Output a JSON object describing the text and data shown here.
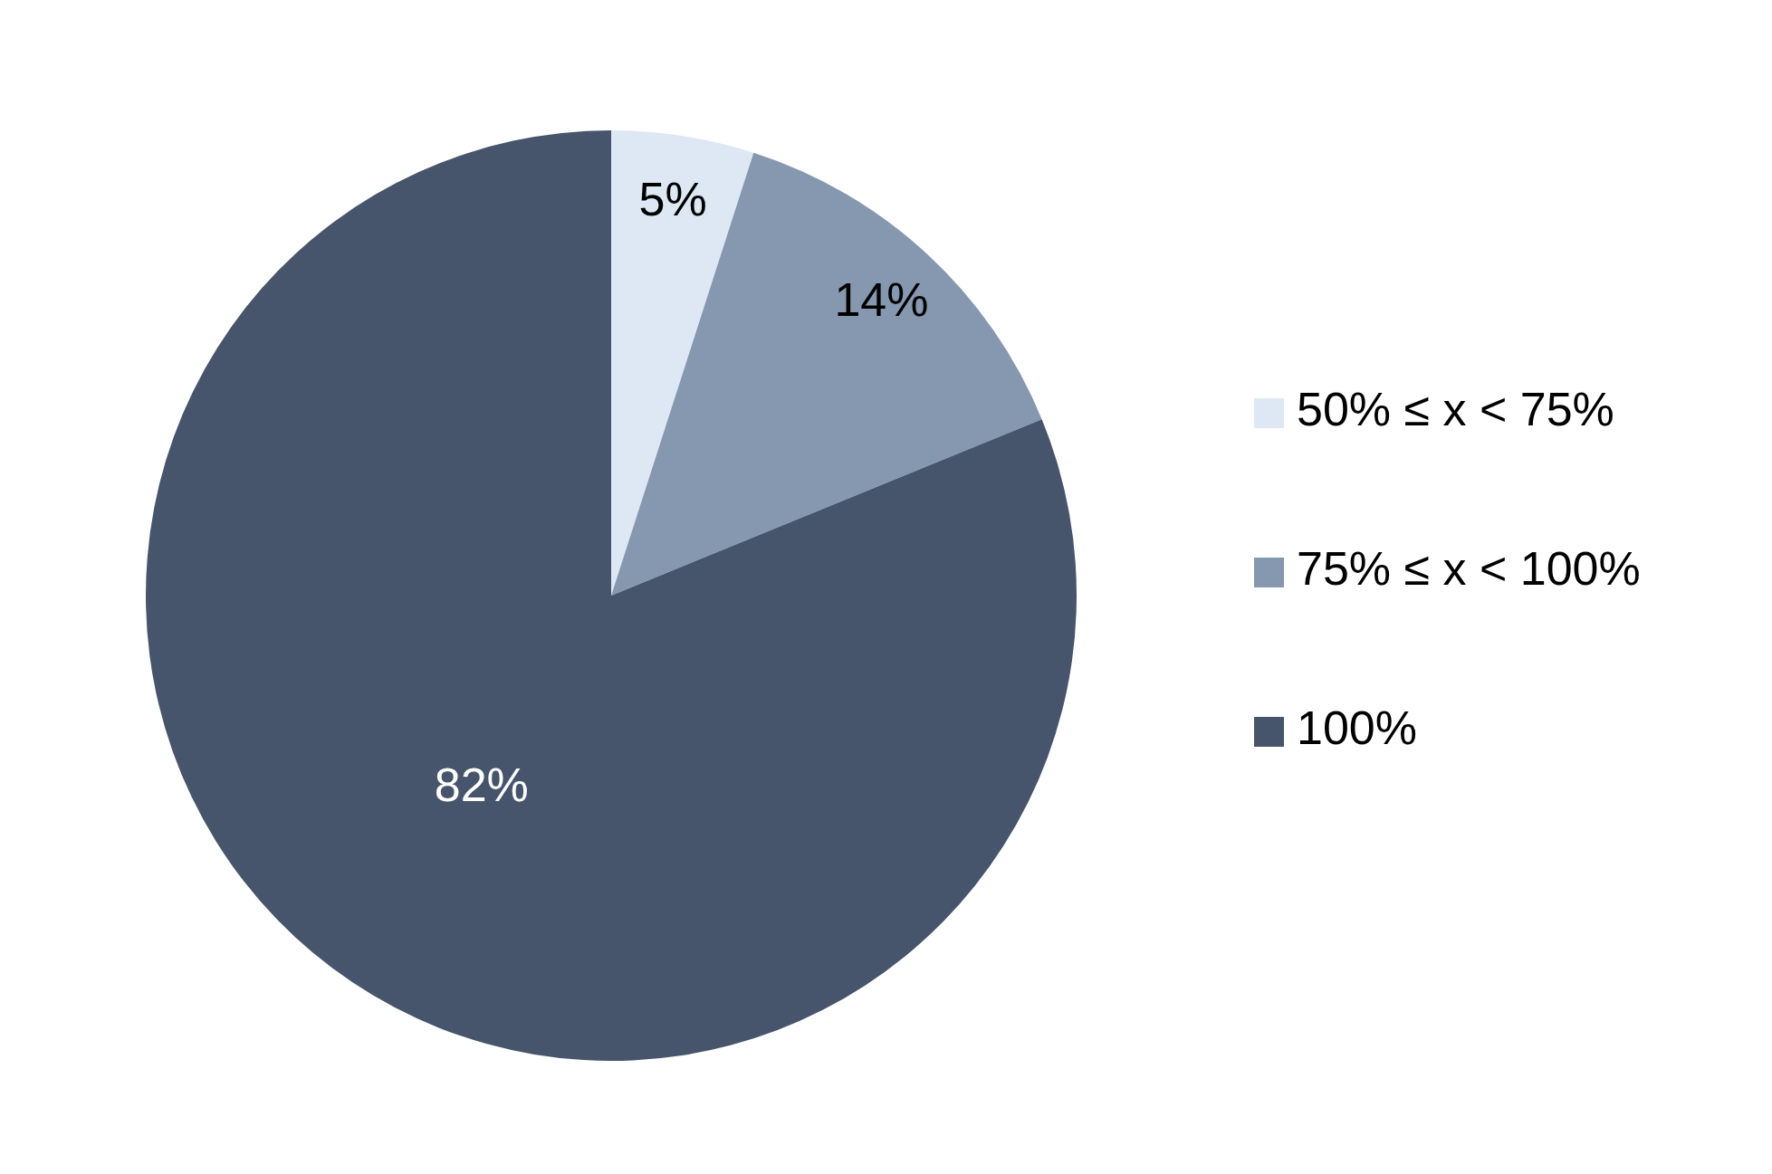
{
  "chart_data": {
    "type": "pie",
    "categories": [
      "50% ≤ x < 75%",
      "75% ≤ x < 100%",
      "100%"
    ],
    "values": [
      5,
      14,
      82
    ],
    "colors": [
      "#dde8f4",
      "#8598b0",
      "#46556c"
    ],
    "value_labels": [
      "5%",
      "14%",
      "82%"
    ],
    "legend": "right"
  }
}
